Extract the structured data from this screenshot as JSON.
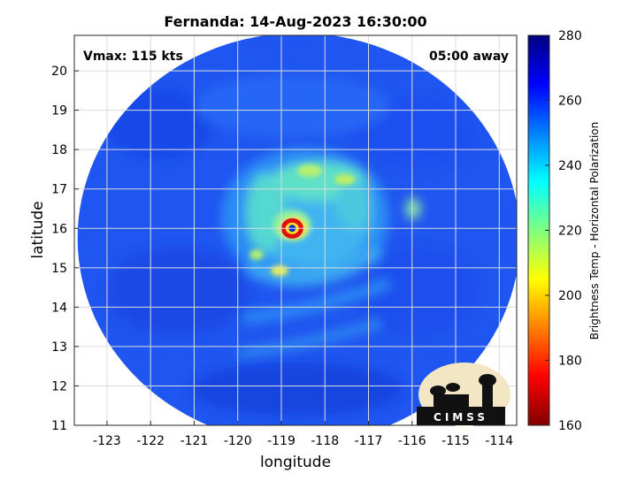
{
  "chart_data": {
    "type": "heatmap",
    "title": "Fernanda: 14-Aug-2023 16:30:00",
    "xlabel": "longitude",
    "ylabel": "latitude",
    "xlim": [
      -123.75,
      -113.6
    ],
    "ylim": [
      11,
      20.9
    ],
    "x_ticks": [
      -123,
      -122,
      -121,
      -120,
      -119,
      -118,
      -117,
      -116,
      -115,
      -114
    ],
    "y_ticks": [
      11,
      12,
      13,
      14,
      15,
      16,
      17,
      18,
      19,
      20
    ],
    "grid": true,
    "annotations": {
      "top_left": "Vmax: 115 kts",
      "top_right": "05:00 away"
    },
    "colorbar": {
      "label": "Brightness Temp - Horizontal Polarization",
      "min": 160,
      "max": 280,
      "ticks": [
        160,
        180,
        200,
        220,
        240,
        260,
        280
      ],
      "colormap": "jet"
    },
    "features": {
      "swath_center": [
        -118.6,
        15.75
      ],
      "eye_center": [
        -118.75,
        16.0
      ],
      "eye_brightness_temp": 175,
      "background_brightness_temp": 258
    }
  },
  "logo": {
    "name": "cimss-logo",
    "text": "CIMSS"
  },
  "colors": {
    "background": "#ffffff",
    "axis": "#262626",
    "grid": "#dcdcdc"
  }
}
